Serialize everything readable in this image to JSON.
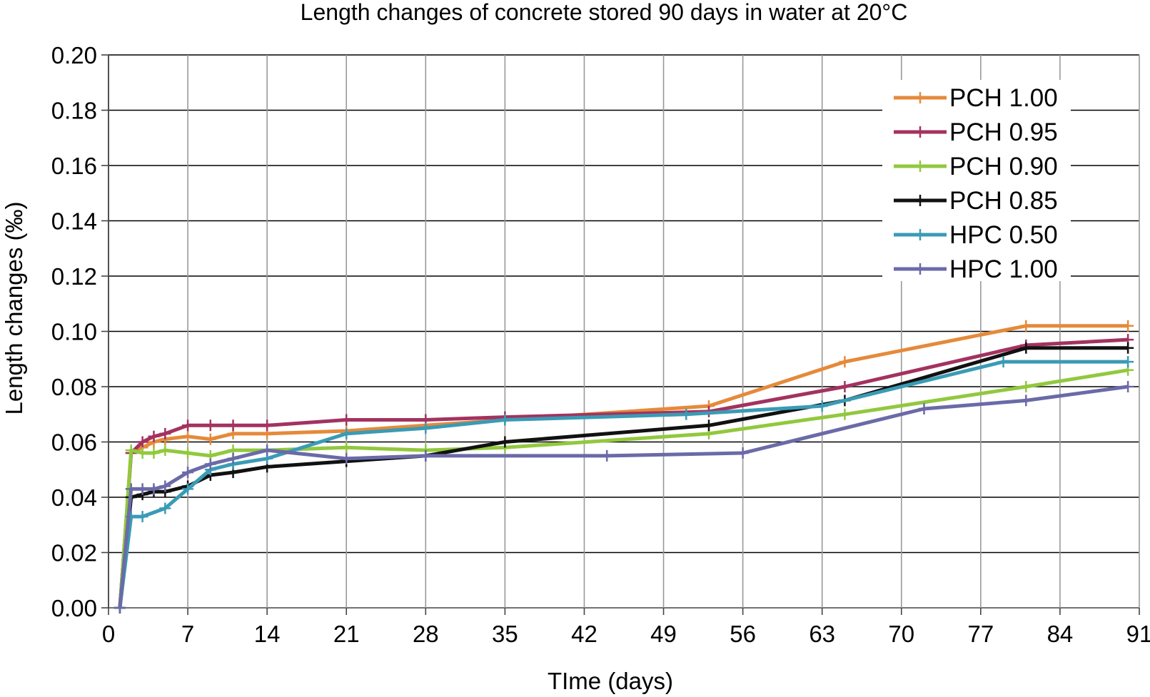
{
  "chart_data": {
    "type": "line",
    "title": "Length changes of concrete stored 90 days in water at 20°C",
    "xlabel": "TIme (days)",
    "ylabel": "Length changes (‰)",
    "xlim": [
      0,
      91
    ],
    "ylim": [
      0,
      0.2
    ],
    "x_ticks": [
      0,
      7,
      14,
      21,
      28,
      35,
      42,
      49,
      56,
      63,
      70,
      77,
      84,
      91
    ],
    "x_tick_labels": [
      "0",
      "7",
      "14",
      "21",
      "28",
      "35",
      "42",
      "49",
      "56",
      "63",
      "70",
      "77",
      "84",
      "91"
    ],
    "y_ticks": [
      0,
      0.02,
      0.04,
      0.06,
      0.08,
      0.1,
      0.12,
      0.14,
      0.16,
      0.18,
      0.2
    ],
    "y_tick_labels": [
      "0.00",
      "0.02",
      "0.04",
      "0.06",
      "0.08",
      "0.10",
      "0.12",
      "0.14",
      "0.16",
      "0.18",
      "0.20"
    ],
    "grid": true,
    "legend_position": "top-right",
    "series": [
      {
        "name": "PCH 1.00",
        "color": "#E58A3A",
        "x": [
          1,
          2,
          3,
          4,
          5,
          7,
          9,
          11,
          14,
          21,
          28,
          35,
          53,
          65,
          81,
          90
        ],
        "y": [
          0,
          0.056,
          0.058,
          0.06,
          0.061,
          0.062,
          0.061,
          0.063,
          0.063,
          0.064,
          0.066,
          0.068,
          0.073,
          0.089,
          0.102,
          0.102
        ]
      },
      {
        "name": "PCH 0.95",
        "color": "#A3325F",
        "x": [
          1,
          2,
          3,
          4,
          5,
          7,
          9,
          11,
          14,
          21,
          28,
          35,
          53,
          65,
          81,
          90
        ],
        "y": [
          0,
          0.056,
          0.06,
          0.062,
          0.063,
          0.066,
          0.066,
          0.066,
          0.066,
          0.068,
          0.068,
          0.069,
          0.071,
          0.08,
          0.095,
          0.097
        ]
      },
      {
        "name": "PCH 0.90",
        "color": "#92C83E",
        "x": [
          1,
          2,
          3,
          4,
          5,
          7,
          9,
          11,
          14,
          21,
          28,
          35,
          53,
          65,
          81,
          90
        ],
        "y": [
          0,
          0.057,
          0.056,
          0.056,
          0.057,
          0.056,
          0.055,
          0.057,
          0.057,
          0.058,
          0.057,
          0.058,
          0.063,
          0.07,
          0.08,
          0.086
        ]
      },
      {
        "name": "PCH 0.85",
        "color": "#111111",
        "x": [
          1,
          2,
          3,
          4,
          5,
          7,
          9,
          11,
          14,
          21,
          28,
          35,
          53,
          65,
          81,
          90
        ],
        "y": [
          0,
          0.04,
          0.041,
          0.042,
          0.042,
          0.044,
          0.048,
          0.049,
          0.051,
          0.053,
          0.055,
          0.06,
          0.066,
          0.075,
          0.094,
          0.094
        ]
      },
      {
        "name": "HPC 0.50",
        "color": "#3A9BB5",
        "x": [
          1,
          2,
          3,
          5,
          7,
          9,
          11,
          14,
          21,
          28,
          35,
          51,
          63,
          79,
          90
        ],
        "y": [
          0,
          0.033,
          0.033,
          0.036,
          0.043,
          0.05,
          0.052,
          0.054,
          0.063,
          0.065,
          0.068,
          0.07,
          0.073,
          0.089,
          0.089
        ]
      },
      {
        "name": "HPC 1.00",
        "color": "#6B6AA8",
        "x": [
          1,
          2,
          3,
          4,
          5,
          7,
          9,
          11,
          14,
          21,
          28,
          44,
          56,
          72,
          81,
          90
        ],
        "y": [
          0,
          0.043,
          0.043,
          0.043,
          0.044,
          0.049,
          0.052,
          0.054,
          0.057,
          0.054,
          0.055,
          0.055,
          0.056,
          0.072,
          0.075,
          0.08
        ]
      }
    ]
  }
}
